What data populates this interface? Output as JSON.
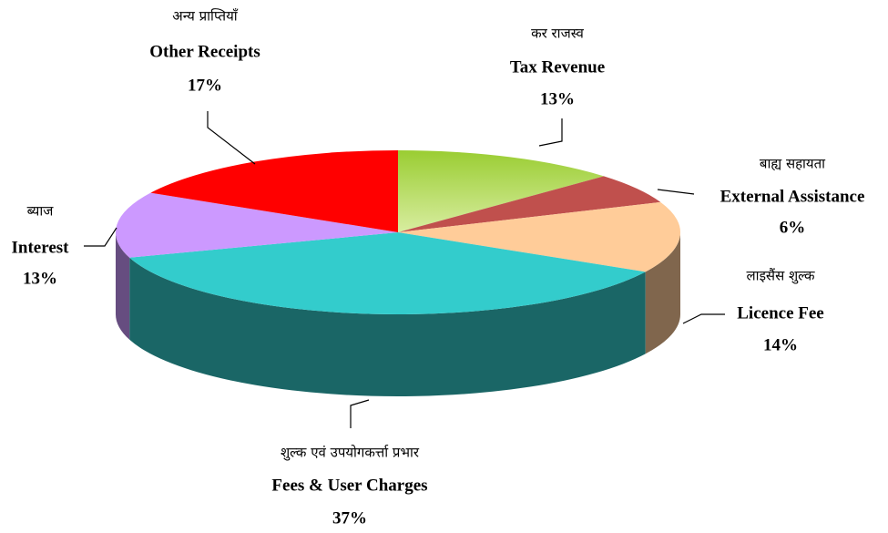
{
  "chart_data": {
    "type": "pie3d",
    "categories": [
      "Tax Revenue",
      "External Assistance",
      "Licence Fee",
      "Fees & User Charges",
      "Interest",
      "Other Receipts"
    ],
    "categories_hi": [
      "कर राजस्व",
      "बाह्य सहायता",
      "लाइसैंस शुल्क",
      "शुल्क एवं उपयोगकर्त्ता प्रभार",
      "ब्याज",
      "अन्य प्राप्तियाँ"
    ],
    "values": [
      13,
      6,
      14,
      37,
      13,
      17
    ],
    "value_labels": [
      "13%",
      "6%",
      "14%",
      "37%",
      "13%",
      "17%"
    ],
    "colors": [
      "#a8d444",
      "#c0504d",
      "#ffcc99",
      "#33cccc",
      "#cc99ff",
      "#ff0000"
    ]
  }
}
